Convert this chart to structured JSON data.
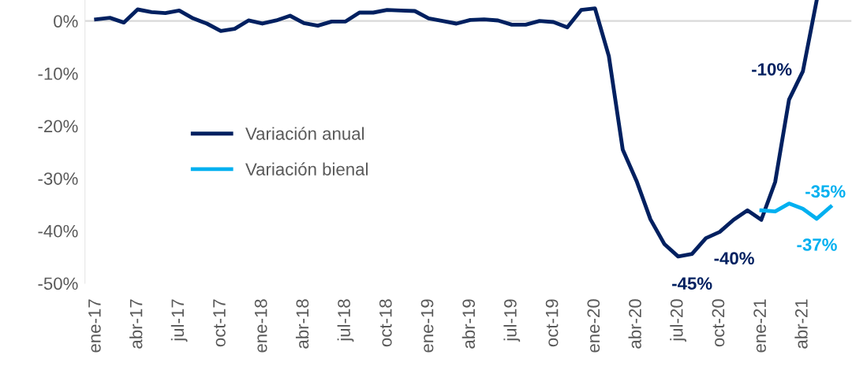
{
  "chart_data": {
    "type": "line",
    "categories": [
      "ene-17",
      null,
      null,
      "abr-17",
      null,
      null,
      "jul-17",
      null,
      null,
      "oct-17",
      null,
      null,
      "ene-18",
      null,
      null,
      "abr-18",
      null,
      null,
      "jul-18",
      null,
      null,
      "oct-18",
      null,
      null,
      "ene-19",
      null,
      null,
      "abr-19",
      null,
      null,
      "jul-19",
      null,
      null,
      "oct-19",
      null,
      null,
      "ene-20",
      null,
      null,
      "abr-20",
      null,
      null,
      "jul-20",
      null,
      null,
      "oct-20",
      null,
      null,
      "ene-21",
      null,
      null,
      "abr-21",
      null,
      null
    ],
    "series": [
      {
        "name": "Variación anual",
        "color": "#002060",
        "values": [
          0.3,
          0.6,
          -0.3,
          2.2,
          1.7,
          1.5,
          2.0,
          0.5,
          -0.5,
          -1.9,
          -1.5,
          0.1,
          -0.5,
          0.1,
          1.0,
          -0.4,
          -0.9,
          -0.1,
          -0.1,
          1.6,
          1.6,
          2.1,
          2.0,
          1.9,
          0.5,
          0.0,
          -0.5,
          0.2,
          0.3,
          0.1,
          -0.7,
          -0.7,
          0.0,
          -0.2,
          -1.2,
          2.1,
          2.4,
          -6.7,
          -24.5,
          -30.5,
          -37.8,
          -42.5,
          -44.9,
          -44.4,
          -41.4,
          -40.2,
          -37.9,
          -36.1,
          -37.9,
          -30.7,
          -15.0,
          -9.6,
          4.0,
          null
        ]
      },
      {
        "name": "Variación bienal",
        "color": "#00b0f0",
        "values": [
          null,
          null,
          null,
          null,
          null,
          null,
          null,
          null,
          null,
          null,
          null,
          null,
          null,
          null,
          null,
          null,
          null,
          null,
          null,
          null,
          null,
          null,
          null,
          null,
          null,
          null,
          null,
          null,
          null,
          null,
          null,
          null,
          null,
          null,
          null,
          null,
          null,
          null,
          null,
          null,
          null,
          null,
          null,
          null,
          null,
          null,
          null,
          null,
          -36.1,
          -36.3,
          -34.8,
          -35.8,
          -37.7,
          -35.4
        ]
      }
    ],
    "ylim": [
      -50,
      4
    ],
    "yticks": [
      {
        "value": -50,
        "label": "-50%"
      },
      {
        "value": -40,
        "label": "-40%"
      },
      {
        "value": -30,
        "label": "-30%"
      },
      {
        "value": -20,
        "label": "-20%"
      },
      {
        "value": -10,
        "label": "-10%"
      },
      {
        "value": 0,
        "label": "0%"
      }
    ],
    "ref_lines": [
      {
        "axis": "y",
        "value": 0,
        "color": "#d9d9d9"
      }
    ],
    "annotations": [
      "-10%",
      "-45%",
      "-40%",
      "-35%",
      "-37%"
    ],
    "legend": "center left",
    "grid": false,
    "marker": "none",
    "line_style": "solid"
  }
}
